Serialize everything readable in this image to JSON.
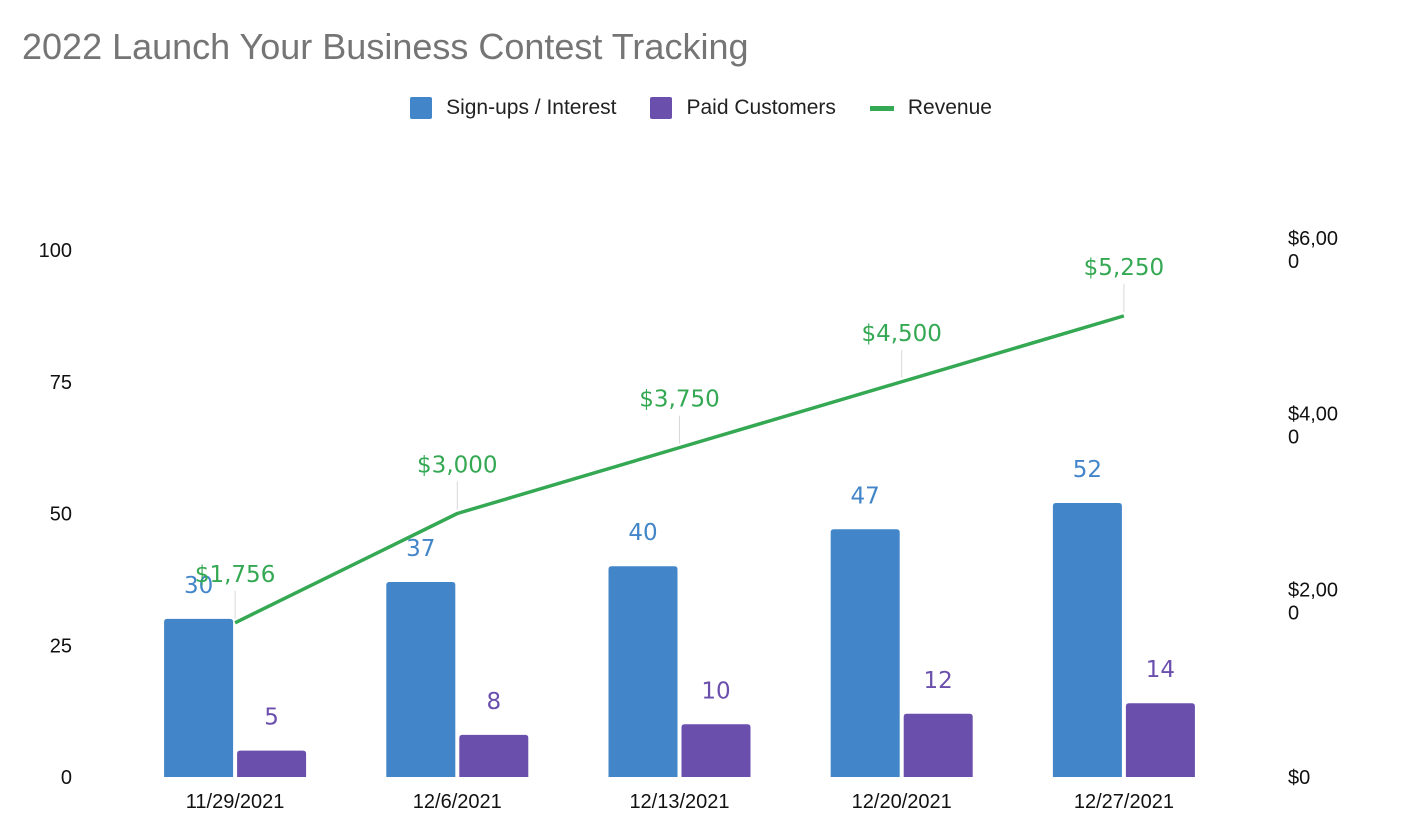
{
  "chart_data": {
    "type": "bar",
    "title": "2022 Launch Your Business Contest Tracking",
    "categories": [
      "11/29/2021",
      "12/6/2021",
      "12/13/2021",
      "12/20/2021",
      "12/27/2021"
    ],
    "series": [
      {
        "name": "Sign-ups / Interest",
        "type": "bar",
        "axis": "left",
        "color": "#4285c8",
        "values": [
          30,
          37,
          40,
          47,
          52
        ],
        "labels": [
          "30",
          "37",
          "40",
          "47",
          "52"
        ]
      },
      {
        "name": "Paid Customers",
        "type": "bar",
        "axis": "left",
        "color": "#6a4fad",
        "values": [
          5,
          8,
          10,
          12,
          14
        ],
        "labels": [
          "5",
          "8",
          "10",
          "12",
          "14"
        ]
      },
      {
        "name": "Revenue",
        "type": "line",
        "axis": "right",
        "color": "#34a853",
        "values": [
          1756,
          3000,
          3750,
          4500,
          5250
        ],
        "labels": [
          "$1,756",
          "$3,000",
          "$3,750",
          "$4,500",
          "$5,250"
        ]
      }
    ],
    "y_left": {
      "lim": [
        0,
        100
      ],
      "ticks": [
        0,
        25,
        50,
        75,
        100
      ],
      "tick_labels": [
        "0",
        "25",
        "50",
        "75",
        "100"
      ]
    },
    "y_right": {
      "lim": [
        0,
        6000
      ],
      "ticks": [
        0,
        2000,
        4000,
        6000
      ],
      "tick_labels": [
        [
          "$0"
        ],
        [
          "$2,00",
          "0"
        ],
        [
          "$4,00",
          "0"
        ],
        [
          "$6,00",
          "0"
        ]
      ]
    },
    "grid": false,
    "legend_position": "top"
  }
}
